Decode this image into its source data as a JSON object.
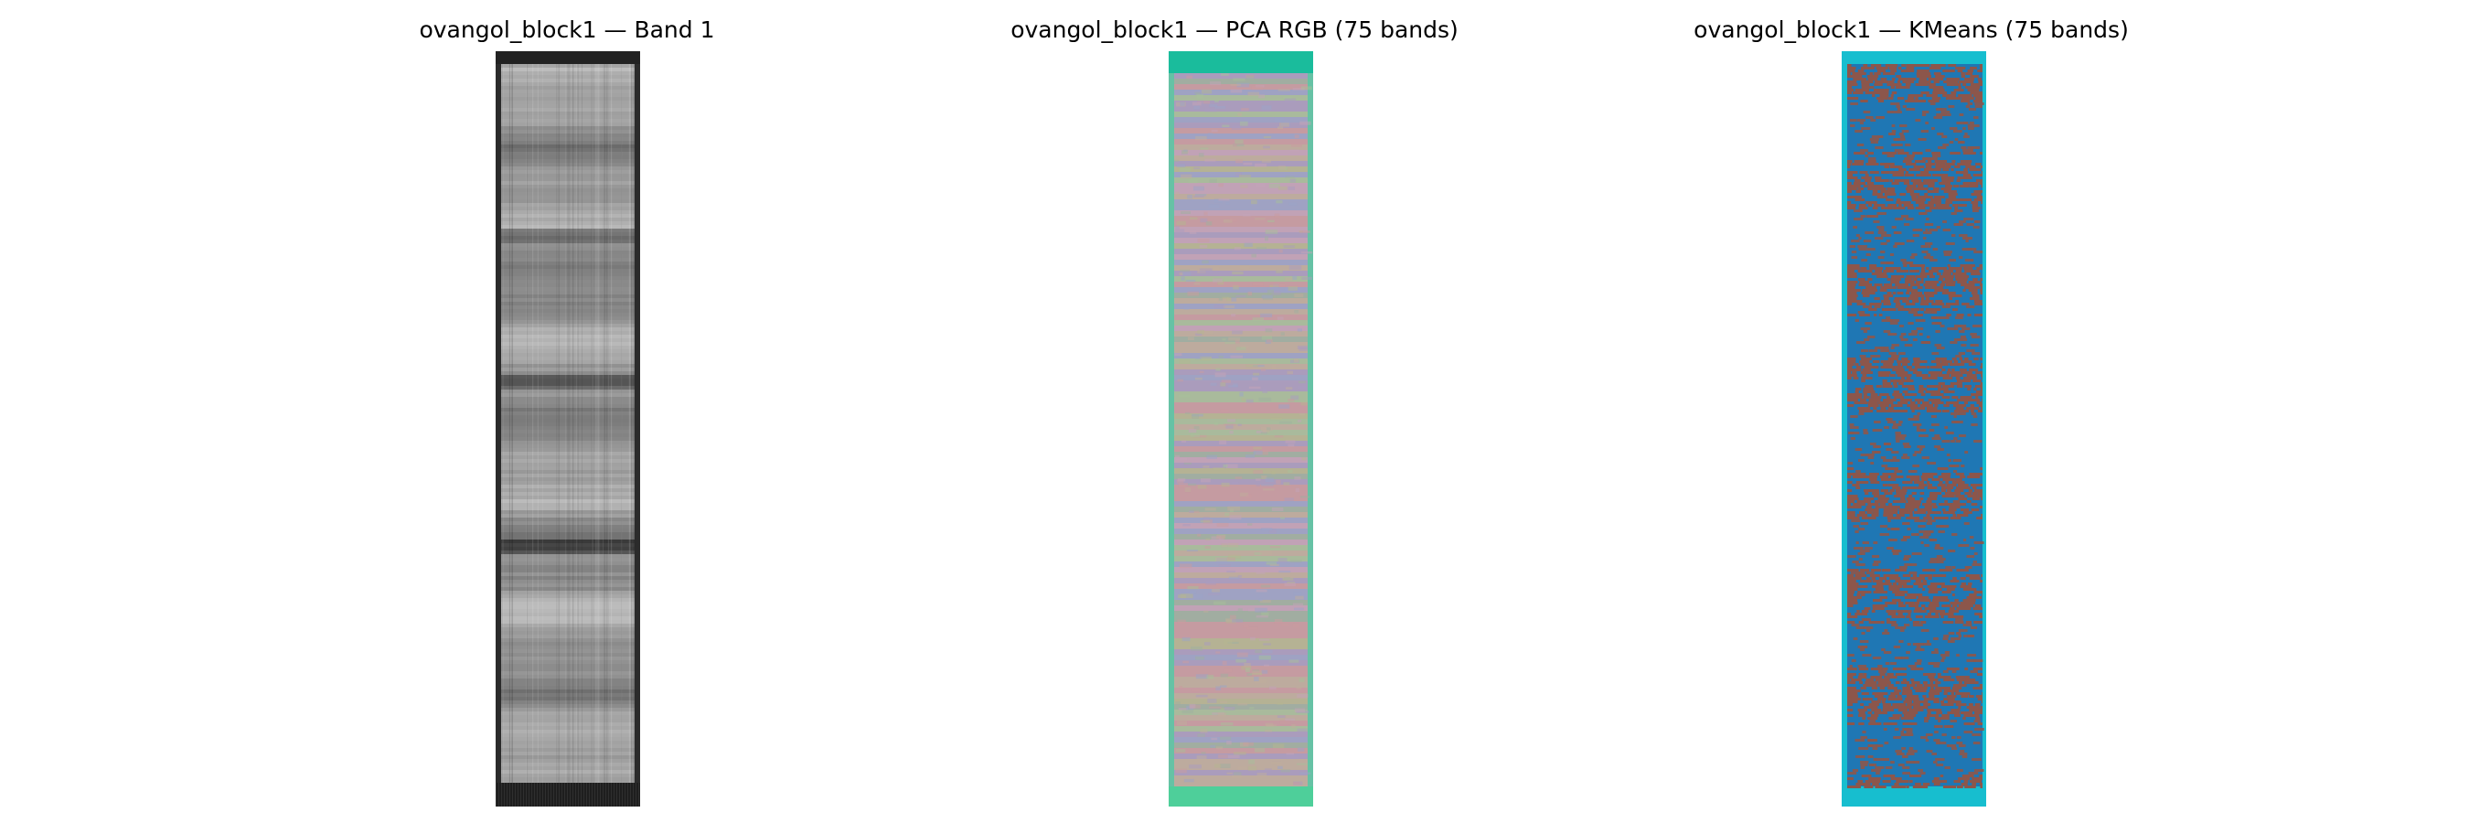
{
  "figure": {
    "panels": [
      {
        "title": "ovangol_block1 — Band 1",
        "image_kind": "grayscale",
        "image_icon": "grayscale-band-image"
      },
      {
        "title": "ovangol_block1 — PCA RGB (75 bands)",
        "image_kind": "pca",
        "image_icon": "pca-rgb-image"
      },
      {
        "title": "ovangol_block1 — KMeans (75 bands)",
        "image_kind": "kmeans",
        "image_icon": "kmeans-cluster-image"
      }
    ],
    "colors": {
      "kmeans_blue": "#1f77b4",
      "kmeans_brown": "#8c564b",
      "kmeans_cyan": "#17becf",
      "pca_teal_top": "#1abc9c",
      "pca_green_bottom": "#4ecf9a",
      "gray_dark": "#2b2b2b"
    }
  }
}
